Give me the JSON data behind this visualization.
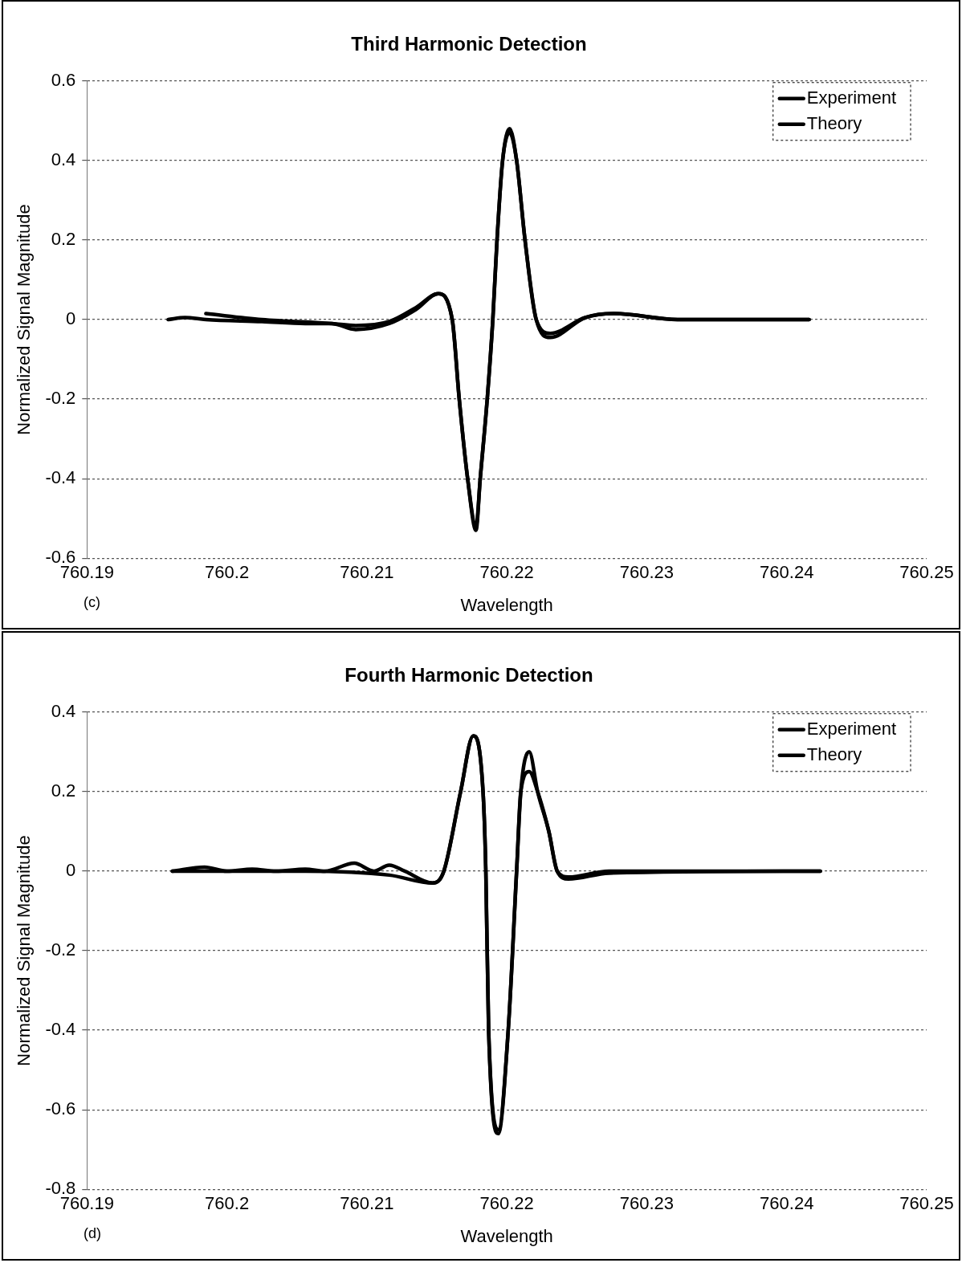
{
  "chart_data": [
    {
      "type": "line",
      "title": "Third Harmonic Detection",
      "xlabel": "Wavelength",
      "ylabel": "Normalized Signal Magnitude",
      "annotations": [
        "(c)"
      ],
      "xlim": [
        760.19,
        760.25
      ],
      "xticks": [
        760.19,
        760.2,
        760.21,
        760.22,
        760.23,
        760.24,
        760.25
      ],
      "ylim": [
        -0.6,
        0.6
      ],
      "yticks": [
        -0.6,
        -0.4,
        -0.2,
        0,
        0.2,
        0.4,
        0.6
      ],
      "grid": "y",
      "legend": "top right",
      "marker": "none",
      "line_style": "solid",
      "series": [
        {
          "name": "Experiment",
          "color": "#000000",
          "x": [
            760.1958,
            760.197,
            760.1985,
            760.2025,
            760.2056,
            760.2075,
            760.2092,
            760.2116,
            760.2135,
            760.2151,
            760.2161,
            760.2166,
            760.2172,
            760.2178,
            760.2181,
            760.2186,
            760.219,
            760.2193,
            760.2197,
            760.2202,
            760.2207,
            760.2213,
            760.2221,
            760.2231,
            760.2256,
            760.2277,
            760.2322,
            760.2416
          ],
          "values": [
            0,
            0.005,
            0,
            -0.005,
            -0.01,
            -0.01,
            -0.025,
            -0.01,
            0.025,
            0.065,
            0,
            -0.2,
            -0.4,
            -0.53,
            -0.4,
            -0.2,
            0,
            0.2,
            0.4,
            0.48,
            0.4,
            0.2,
            0,
            -0.045,
            0.005,
            0.015,
            0,
            0
          ]
        },
        {
          "name": "Theory",
          "color": "#000000",
          "x": [
            760.1985,
            760.2025,
            760.2075,
            760.2092,
            760.2116,
            760.2135,
            760.2151,
            760.2161,
            760.2166,
            760.2172,
            760.2178,
            760.2181,
            760.2186,
            760.219,
            760.2193,
            760.2197,
            760.2202,
            760.2207,
            760.2213,
            760.2221,
            760.2231,
            760.2256,
            760.2277,
            760.2322,
            760.2416
          ],
          "values": [
            0.015,
            0,
            -0.01,
            -0.015,
            -0.005,
            0.03,
            0.065,
            0,
            -0.2,
            -0.4,
            -0.52,
            -0.4,
            -0.2,
            0,
            0.2,
            0.4,
            0.47,
            0.4,
            0.2,
            0,
            -0.035,
            0.005,
            0.015,
            0,
            0
          ]
        }
      ]
    },
    {
      "type": "line",
      "title": "Fourth Harmonic Detection",
      "xlabel": "Wavelength",
      "ylabel": "Normalized Signal Magnitude",
      "annotations": [
        "(d)"
      ],
      "xlim": [
        760.19,
        760.25
      ],
      "xticks": [
        760.19,
        760.2,
        760.21,
        760.22,
        760.23,
        760.24,
        760.25
      ],
      "ylim": [
        -0.8,
        0.4
      ],
      "yticks": [
        -0.8,
        -0.6,
        -0.4,
        -0.2,
        0,
        0.2,
        0.4
      ],
      "grid": "y",
      "legend": "top right",
      "marker": "none",
      "line_style": "solid",
      "series": [
        {
          "name": "Experiment",
          "color": "#000000",
          "x": [
            760.1961,
            760.1984,
            760.2,
            760.2018,
            760.2035,
            760.2056,
            760.207,
            760.2091,
            760.2105,
            760.2116,
            760.2127,
            760.2147,
            760.2155,
            760.2167,
            760.2176,
            760.2183,
            760.2185,
            760.2187,
            760.2194,
            760.2201,
            760.2207,
            760.221,
            760.2216,
            760.2222,
            760.223,
            760.2236,
            760.2244,
            760.2273,
            760.2424
          ],
          "values": [
            0,
            0.01,
            0,
            0.005,
            0,
            0.005,
            0,
            0.02,
            0,
            0.015,
            0,
            -0.03,
            0,
            0.2,
            0.34,
            0.2,
            0,
            -0.4,
            -0.66,
            -0.4,
            0,
            0.2,
            0.3,
            0.2,
            0.1,
            0,
            -0.015,
            0,
            0
          ]
        },
        {
          "name": "Theory",
          "color": "#000000",
          "x": [
            760.1961,
            760.2056,
            760.2116,
            760.2147,
            760.2155,
            760.2167,
            760.2176,
            760.2183,
            760.2185,
            760.2187,
            760.2194,
            760.2201,
            760.2207,
            760.221,
            760.2216,
            760.2222,
            760.223,
            760.2236,
            760.2244,
            760.2273,
            760.2424
          ],
          "values": [
            0,
            0,
            -0.01,
            -0.03,
            0,
            0.2,
            0.34,
            0.2,
            0,
            -0.4,
            -0.65,
            -0.4,
            0,
            0.2,
            0.25,
            0.2,
            0.1,
            0,
            -0.02,
            -0.005,
            0
          ]
        }
      ]
    }
  ]
}
